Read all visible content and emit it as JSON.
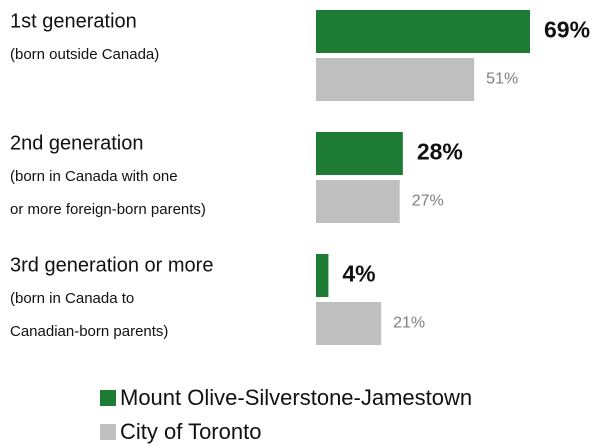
{
  "chart_data": {
    "type": "hbar",
    "categories": [
      "1st generation",
      "2nd generation",
      "3rd generation or more"
    ],
    "category_notes": [
      [
        "(born outside Canada)"
      ],
      [
        "(born in Canada with one",
        "or more foreign-born parents)"
      ],
      [
        "(born in Canada to",
        "Canadian-born parents)"
      ]
    ],
    "series": [
      {
        "name": "Mount Olive-Silverstone-Jamestown",
        "color": "#1e7b34",
        "values": [
          69,
          28,
          4
        ],
        "value_labels": [
          "69%",
          "28%",
          "4%"
        ]
      },
      {
        "name": "City of Toronto",
        "color": "#bfbfbf",
        "values": [
          51,
          27,
          21
        ],
        "value_labels": [
          "51%",
          "27%",
          "21%"
        ]
      }
    ]
  }
}
